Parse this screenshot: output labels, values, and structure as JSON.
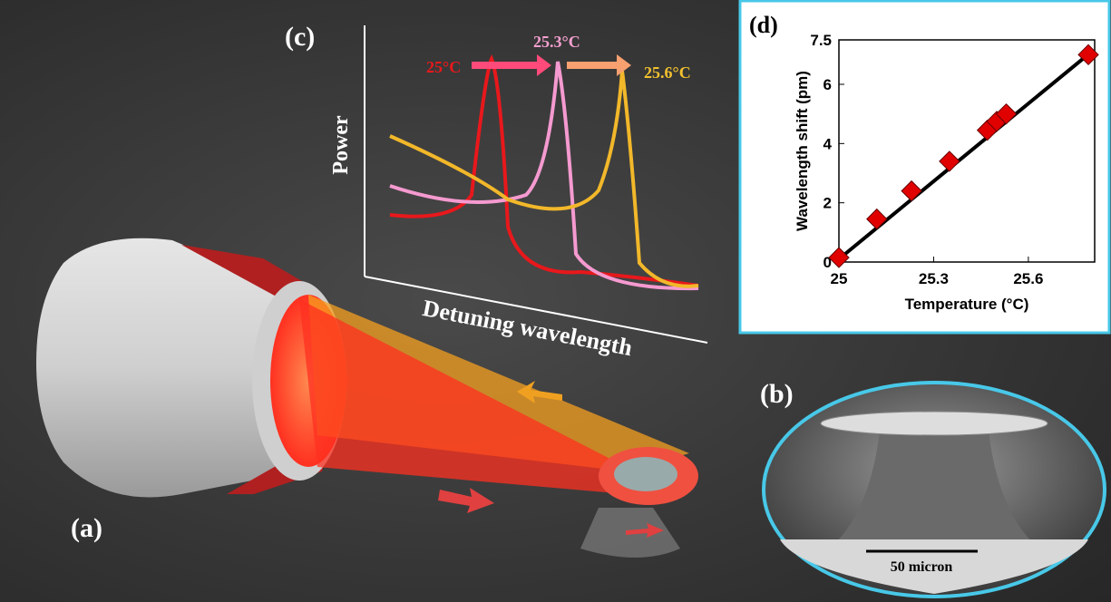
{
  "panels": {
    "a": {
      "label": "(a)"
    },
    "b": {
      "label": "(b)",
      "scale_bar": "50 micron"
    },
    "c": {
      "label": "(c)",
      "y_label": "Power",
      "x_label": "Detuning wavelength",
      "peaks": [
        "25°C",
        "25.3°C",
        "25.6°C"
      ]
    },
    "d": {
      "label": "(d)"
    }
  },
  "chart_data": {
    "type": "scatter",
    "xlabel": "Temperature (°C)",
    "ylabel": "Wavelength shift (pm)",
    "x": [
      25.0,
      25.12,
      25.23,
      25.35,
      25.47,
      25.5,
      25.53,
      25.79
    ],
    "values": [
      0.15,
      1.45,
      2.4,
      3.4,
      4.45,
      4.75,
      5.0,
      7.0
    ],
    "color": "#e00000",
    "fit": {
      "x": [
        25.0,
        25.8
      ],
      "values": [
        0.1,
        7.1
      ],
      "color": "#000000"
    },
    "xlim": [
      25,
      25.81
    ],
    "xticks": [
      25,
      25.3,
      25.6
    ],
    "ylim": [
      0,
      7.5
    ],
    "yticks": [
      0,
      2,
      4,
      6,
      7.5
    ]
  }
}
